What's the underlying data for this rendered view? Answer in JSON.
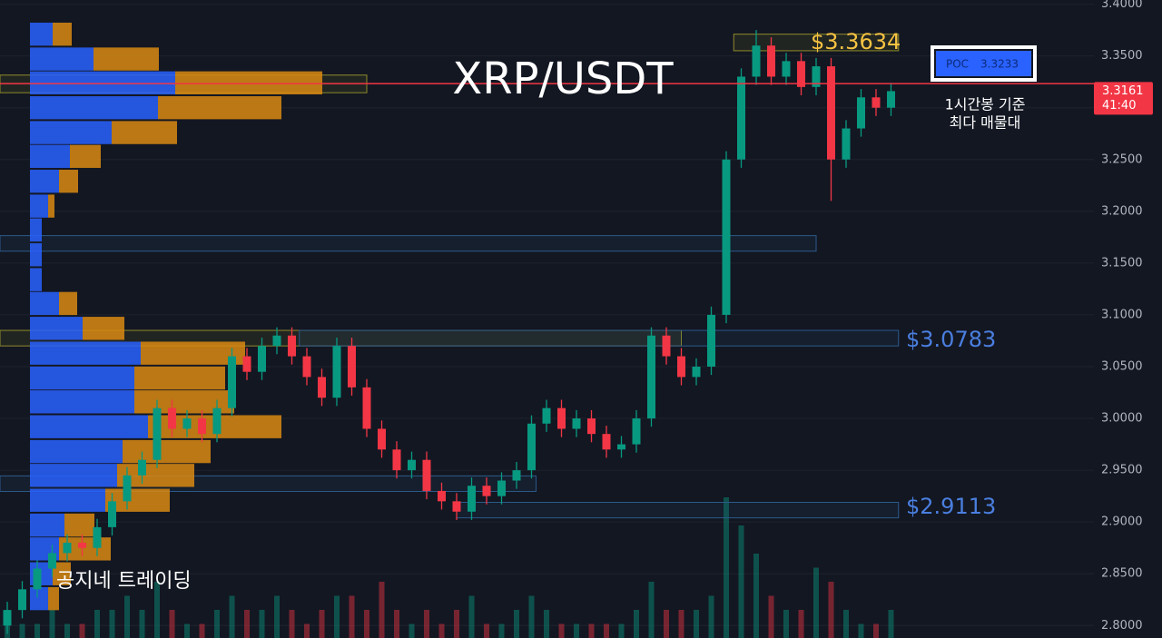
{
  "chart_data": {
    "type": "candlestick",
    "title": "XRP/USDT",
    "ylim": [
      2.788,
      3.404
    ],
    "yticks": [
      {
        "value": 3.4,
        "label": "3.4000"
      },
      {
        "value": 3.35,
        "label": "3.3500"
      },
      {
        "value": 3.3,
        "label": "3.3000"
      },
      {
        "value": 3.25,
        "label": "3.2500"
      },
      {
        "value": 3.2,
        "label": "3.2000"
      },
      {
        "value": 3.15,
        "label": "3.1500"
      },
      {
        "value": 3.1,
        "label": "3.1000"
      },
      {
        "value": 3.05,
        "label": "3.0500"
      },
      {
        "value": 3.0,
        "label": "3.0000"
      },
      {
        "value": 2.95,
        "label": "2.9500"
      },
      {
        "value": 2.9,
        "label": "2.9000"
      },
      {
        "value": 2.85,
        "label": "2.8500"
      },
      {
        "value": 2.8,
        "label": "2.8000"
      }
    ],
    "up_color": "#089981",
    "down_color": "#f23645",
    "open": [
      2.8,
      2.815,
      2.835,
      2.855,
      2.87,
      2.88,
      2.875,
      2.895,
      2.92,
      2.945,
      2.96,
      3.01,
      2.99,
      3.0,
      2.985,
      3.01,
      3.06,
      3.045,
      3.07,
      3.08,
      3.06,
      3.04,
      3.02,
      3.07,
      3.03,
      2.99,
      2.97,
      2.95,
      2.96,
      2.93,
      2.92,
      2.91,
      2.935,
      2.925,
      2.94,
      2.95,
      2.995,
      3.01,
      2.99,
      3.0,
      2.985,
      2.97,
      2.975,
      3.0,
      3.08,
      3.06,
      3.04,
      3.05,
      3.1,
      3.25,
      3.33,
      3.36,
      3.33,
      3.345,
      3.32,
      3.34,
      3.25,
      3.28,
      3.31,
      3.3
    ],
    "high": [
      2.823,
      2.843,
      2.863,
      2.878,
      2.888,
      2.888,
      2.903,
      2.928,
      2.953,
      2.968,
      3.018,
      3.018,
      3.008,
      3.008,
      3.018,
      3.068,
      3.068,
      3.078,
      3.088,
      3.088,
      3.068,
      3.048,
      3.078,
      3.078,
      3.038,
      2.998,
      2.978,
      2.968,
      2.968,
      2.938,
      2.928,
      2.943,
      2.943,
      2.948,
      2.958,
      3.003,
      3.018,
      3.018,
      3.008,
      3.008,
      2.993,
      2.983,
      3.008,
      3.088,
      3.088,
      3.068,
      3.058,
      3.108,
      3.258,
      3.338,
      3.375,
      3.368,
      3.353,
      3.353,
      3.348,
      3.348,
      3.288,
      3.318,
      3.318,
      3.324
    ],
    "low": [
      2.792,
      2.807,
      2.827,
      2.847,
      2.862,
      2.867,
      2.867,
      2.887,
      2.912,
      2.937,
      2.952,
      2.982,
      2.982,
      2.977,
      2.977,
      3.002,
      3.037,
      3.037,
      3.062,
      3.052,
      3.032,
      3.012,
      3.012,
      3.022,
      2.982,
      2.962,
      2.942,
      2.942,
      2.922,
      2.912,
      2.902,
      2.902,
      2.917,
      2.917,
      2.932,
      2.942,
      2.987,
      2.982,
      2.982,
      2.977,
      2.962,
      2.962,
      2.967,
      2.992,
      3.052,
      3.032,
      3.032,
      3.042,
      3.092,
      3.242,
      3.322,
      3.322,
      3.322,
      3.312,
      3.312,
      3.21,
      3.242,
      3.272,
      3.292,
      3.292
    ],
    "close": [
      2.815,
      2.835,
      2.855,
      2.87,
      2.88,
      2.875,
      2.895,
      2.92,
      2.945,
      2.96,
      3.01,
      2.99,
      3.0,
      2.985,
      3.01,
      3.06,
      3.045,
      3.07,
      3.08,
      3.06,
      3.04,
      3.02,
      3.07,
      3.03,
      2.99,
      2.97,
      2.95,
      2.96,
      2.93,
      2.92,
      2.91,
      2.935,
      2.925,
      2.94,
      2.95,
      2.995,
      3.01,
      2.99,
      3.0,
      2.985,
      2.97,
      2.975,
      3.0,
      3.08,
      3.06,
      3.04,
      3.05,
      3.1,
      3.25,
      3.33,
      3.36,
      3.33,
      3.345,
      3.32,
      3.34,
      3.25,
      3.28,
      3.31,
      3.3,
      3.316
    ],
    "volume": [
      2,
      1,
      1,
      2,
      1,
      1,
      2,
      2,
      3,
      2,
      4,
      2,
      1,
      1,
      2,
      3,
      2,
      2,
      3,
      2,
      1,
      2,
      3,
      3,
      2,
      4,
      2,
      1,
      2,
      1,
      2,
      3,
      1,
      1,
      2,
      3,
      2,
      1,
      1,
      1,
      1,
      1,
      2,
      4,
      2,
      2,
      2,
      3,
      10,
      8,
      6,
      3,
      2,
      2,
      5,
      4,
      2,
      1,
      1,
      2
    ],
    "volume_profile": {
      "prices": [
        3.371,
        3.347,
        3.324,
        3.3,
        3.276,
        3.253,
        3.229,
        3.205,
        3.182,
        3.158,
        3.134,
        3.111,
        3.087,
        3.063,
        3.039,
        3.016,
        2.992,
        2.968,
        2.945,
        2.921,
        2.897,
        2.874,
        2.85,
        2.826
      ],
      "buy": [
        25,
        70,
        160,
        141,
        90,
        44,
        32,
        20,
        13,
        13,
        13,
        32,
        58,
        122,
        115,
        115,
        130,
        102,
        96,
        83,
        38,
        32,
        25,
        20
      ],
      "sell": [
        21,
        72,
        162,
        136,
        72,
        34,
        21,
        7,
        0,
        0,
        0,
        20,
        46,
        115,
        100,
        110,
        147,
        97,
        85,
        71,
        33,
        57,
        20,
        12
      ],
      "buy_color": "#2962ff",
      "sell_color": "#d98a12"
    },
    "zones": [
      {
        "range": [
          3.355,
          3.371
        ],
        "start": 48.5,
        "end": 59.5,
        "color": "#8f8a2a"
      },
      {
        "range": [
          3.3145,
          3.3315
        ],
        "start": -0.5,
        "end": 24,
        "color": "#8f8a2a"
      },
      {
        "range": [
          3.1615,
          3.1765
        ],
        "start": -0.5,
        "end": 54,
        "color": "#2c5a8a"
      },
      {
        "range": [
          3.07,
          3.085
        ],
        "start": -0.5,
        "end": 45,
        "color": "#8f8a2a"
      },
      {
        "range": [
          3.07,
          3.085
        ],
        "start": 19.5,
        "end": 59.5,
        "color": "#2c5a8a"
      },
      {
        "range": [
          2.9295,
          2.9445
        ],
        "start": -0.5,
        "end": 35.3,
        "color": "#2c5a8a"
      },
      {
        "range": [
          2.904,
          2.919
        ],
        "start": 30,
        "end": 59.5,
        "color": "#2c5a8a"
      }
    ],
    "poc_label": "POC",
    "poc_value": 3.3233,
    "last_price": 3.3161,
    "countdown": "41:40",
    "annotations": [
      "$3.3634",
      "$3.0783",
      "$2.9113",
      "1시간봉 기준",
      "최다 매물대",
      "공지네 트레이딩"
    ]
  }
}
